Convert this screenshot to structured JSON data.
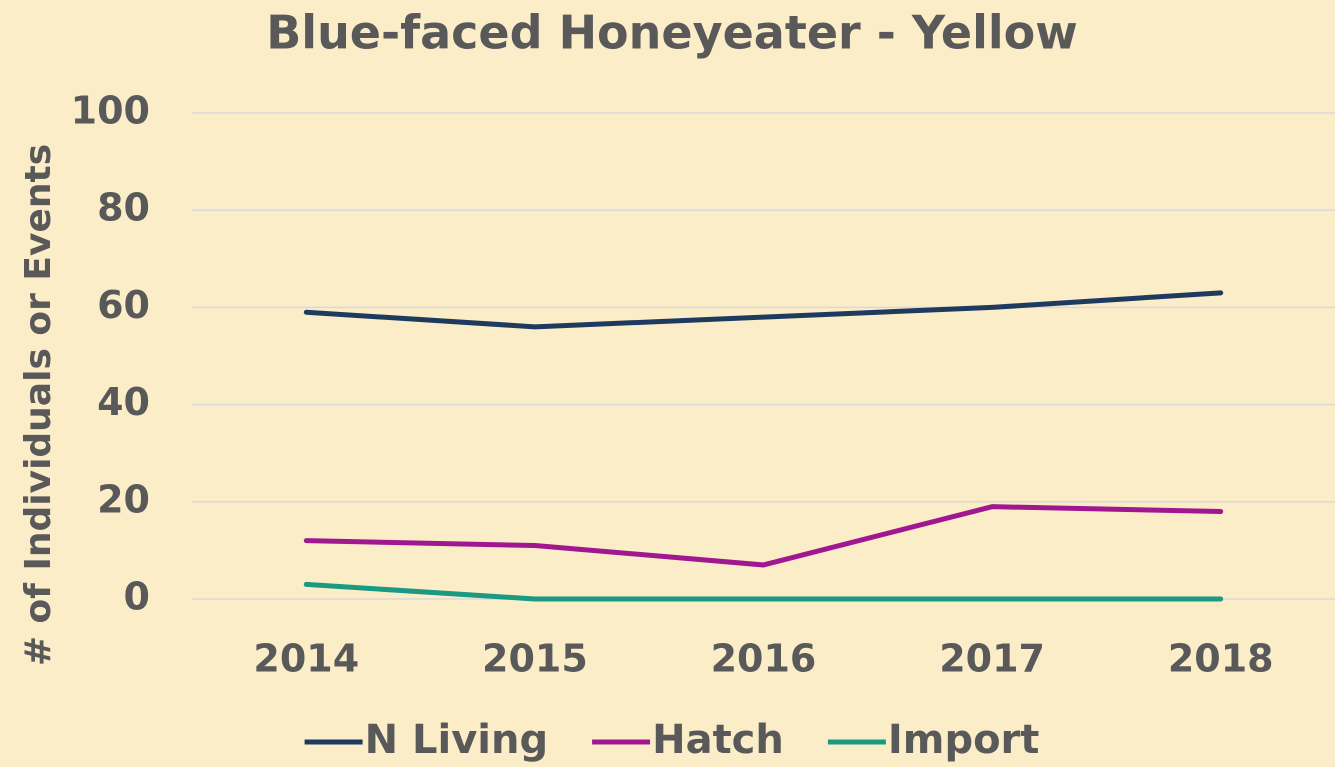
{
  "chart_data": {
    "type": "line",
    "title": "Blue-faced Honeyeater - Yellow",
    "y_label": "# of Individuals or Events",
    "categories": [
      "2014",
      "2015",
      "2016",
      "2017",
      "2018"
    ],
    "series": [
      {
        "name": "N Living",
        "color": "#1f3a5f",
        "values": [
          59,
          56,
          58,
          60,
          63
        ]
      },
      {
        "name": "Hatch",
        "color": "#a0178f",
        "values": [
          12,
          11,
          7,
          19,
          18
        ]
      },
      {
        "name": "Import",
        "color": "#1a9a80",
        "values": [
          3,
          0,
          0,
          0,
          0
        ]
      }
    ],
    "ylim": [
      0,
      100
    ],
    "yticks": [
      0,
      20,
      40,
      60,
      80,
      100
    ],
    "grid": true,
    "legend": "bottom"
  }
}
